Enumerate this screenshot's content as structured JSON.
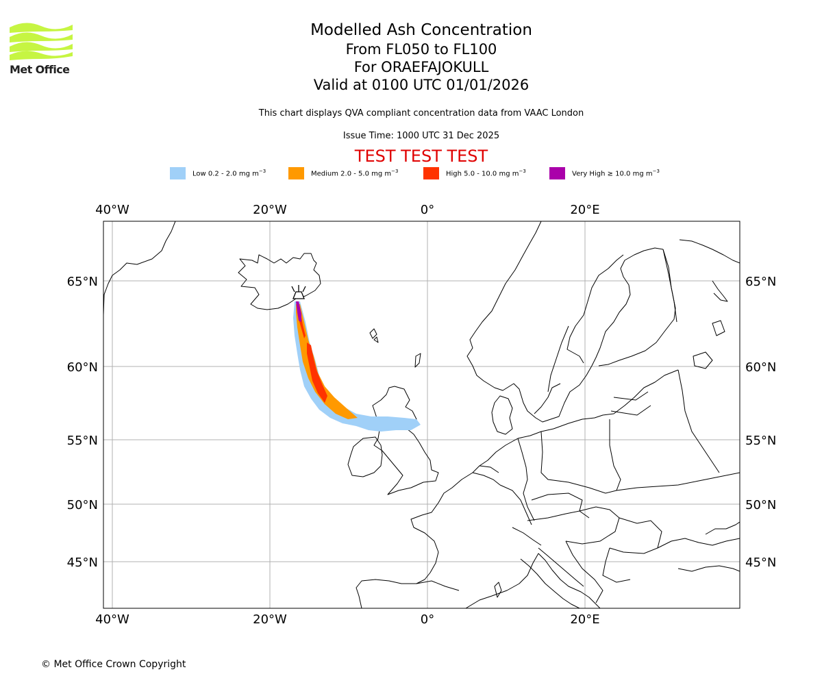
{
  "header": {
    "logo_text": "Met Office",
    "title": "Modelled Ash Concentration",
    "levels": "From FL050 to FL100",
    "volcano": "For ORAEFAJOKULL",
    "valid": "Valid at 0100 UTC 01/01/2026",
    "qva_note": "This chart displays QVA compliant concentration data from VAAC London",
    "issue_time": "Issue Time: 1000 UTC 31 Dec 2025",
    "test_banner": "TEST TEST TEST"
  },
  "legend": [
    {
      "label": "Low 0.2 - 2.0 mg m",
      "unit_sup": "−3",
      "color": "#a0d0f8"
    },
    {
      "label": "Medium 2.0 - 5.0 mg m",
      "unit_sup": "−3",
      "color": "#ff9900"
    },
    {
      "label": "High 5.0 - 10.0 mg m",
      "unit_sup": "−3",
      "color": "#ff3300"
    },
    {
      "label": "Very High ≥ 10.0 mg m",
      "unit_sup": "−3",
      "color": "#aa00aa"
    }
  ],
  "map": {
    "lon_labels": [
      "40°W",
      "20°W",
      "0°",
      "20°E"
    ],
    "lon_values": [
      -40,
      -20,
      0,
      20
    ],
    "lat_labels": [
      "65°N",
      "60°N",
      "55°N",
      "50°N",
      "45°N"
    ],
    "lat_values": [
      65,
      60,
      55,
      50,
      45
    ],
    "volcano_name": "ORAEFAJOKULL",
    "gridlines": true
  },
  "footer": {
    "copyright": "© Met Office Crown Copyright"
  },
  "colors": {
    "coast": "#000000",
    "grid": "#b0b0b0",
    "test": "#e00000"
  }
}
